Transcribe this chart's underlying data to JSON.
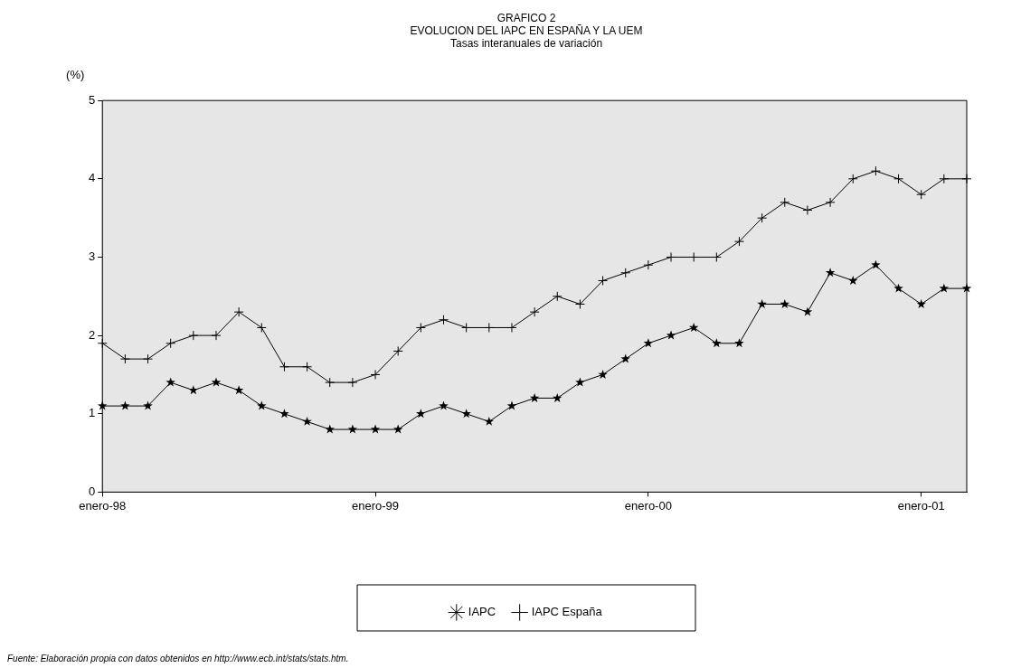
{
  "chart_data": {
    "type": "line",
    "title": "GRAFICO 2\nEVOLUCION DEL IAPC EN ESPAÑA Y LA UEM",
    "subtitle": "Tasas interanuales de variación",
    "ylabel": "(%)",
    "categories": [
      "enero-98",
      null,
      null,
      null,
      null,
      null,
      null,
      null,
      null,
      null,
      null,
      null,
      "enero-99",
      null,
      null,
      null,
      null,
      null,
      null,
      null,
      null,
      null,
      null,
      null,
      "enero-00",
      null,
      null,
      null,
      null,
      null,
      null,
      null,
      null,
      null,
      null,
      null,
      "enero-01",
      null,
      null
    ],
    "series": [
      {
        "name": "IAPC",
        "color": "#000000",
        "marker": "star",
        "values": [
          1.1,
          1.1,
          1.1,
          1.4,
          1.3,
          1.4,
          1.3,
          1.1,
          1.0,
          0.9,
          0.8,
          0.8,
          0.8,
          0.8,
          1.0,
          1.1,
          1.0,
          0.9,
          1.1,
          1.2,
          1.2,
          1.4,
          1.5,
          1.7,
          1.9,
          2.0,
          2.1,
          1.9,
          1.9,
          2.4,
          2.4,
          2.3,
          2.8,
          2.7,
          2.9,
          2.6,
          2.4,
          2.6,
          2.6
        ]
      },
      {
        "name": "IAPC España",
        "color": "#000000",
        "marker": "cross",
        "values": [
          1.9,
          1.7,
          1.7,
          1.9,
          2.0,
          2.0,
          2.3,
          2.1,
          1.6,
          1.6,
          1.4,
          1.4,
          1.5,
          1.8,
          2.1,
          2.2,
          2.1,
          2.1,
          2.1,
          2.3,
          2.5,
          2.4,
          2.7,
          2.8,
          2.9,
          3.0,
          3.0,
          3.0,
          3.2,
          3.5,
          3.7,
          3.6,
          3.7,
          4.0,
          4.1,
          4.0,
          3.8,
          4.0,
          4.0
        ]
      }
    ],
    "ylim": [
      0,
      5
    ],
    "yticks": [
      0,
      1,
      2,
      3,
      4,
      5
    ],
    "grid": false,
    "legend": "bottom",
    "line_style": "solid",
    "annotations": [
      "Fuente: Elaboración propia con datos obtenidos en http://www.ecb.int/stats/stats.htm."
    ]
  }
}
